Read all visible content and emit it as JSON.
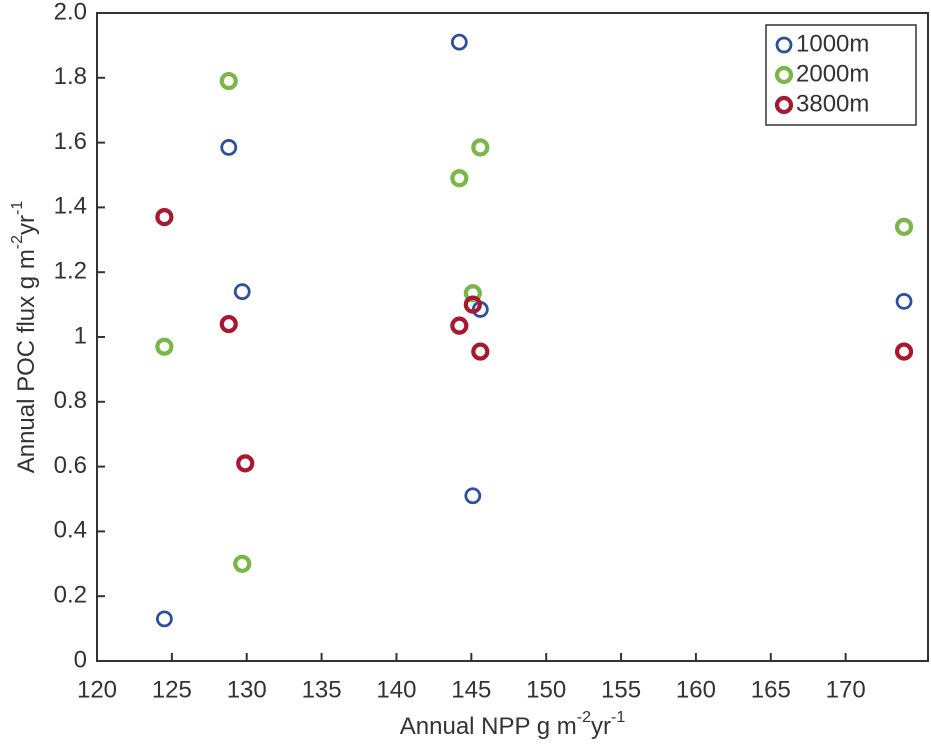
{
  "chart_data": {
    "type": "scatter",
    "x_label_parts": [
      "Annual NPP g m",
      "-2",
      "yr",
      "-1"
    ],
    "y_label_parts": [
      "Annual POC flux g m",
      "-2",
      "yr",
      "-1"
    ],
    "xlim": [
      120,
      175.5
    ],
    "xticks": [
      120,
      125,
      130,
      135,
      140,
      145,
      150,
      155,
      160,
      165,
      170
    ],
    "ylim": [
      0,
      2
    ],
    "yticks": [
      0,
      0.2,
      0.4,
      0.6,
      0.8,
      1,
      1.2,
      1.4,
      1.6,
      1.8,
      {
        "value": 2,
        "label": "2.0"
      }
    ],
    "legend": "upper right",
    "series": [
      {
        "name": "1000m",
        "color": "#2e4f9e",
        "x": [
          124.5,
          128.8,
          129.7,
          144.2,
          145.1,
          145.6,
          173.9
        ],
        "values": [
          0.13,
          1.585,
          1.14,
          1.91,
          0.51,
          1.085,
          1.11
        ]
      },
      {
        "name": "2000m",
        "color": "#7ab648",
        "x": [
          124.5,
          128.8,
          129.7,
          144.2,
          145.6,
          145.1,
          173.9
        ],
        "values": [
          0.97,
          1.79,
          0.3,
          1.49,
          1.585,
          1.135,
          1.34
        ]
      },
      {
        "name": "3800m",
        "color": "#a6192e",
        "x": [
          124.5,
          128.8,
          129.9,
          144.2,
          145.1,
          145.6,
          173.9
        ],
        "values": [
          1.37,
          1.04,
          0.61,
          1.035,
          1.1,
          0.955,
          0.955
        ]
      }
    ]
  }
}
